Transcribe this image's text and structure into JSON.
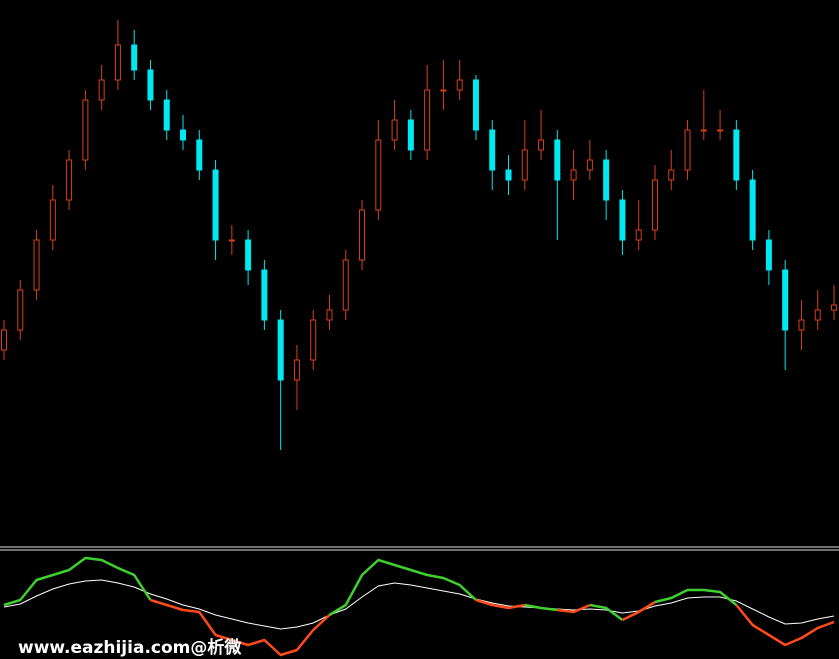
{
  "chart_data": [
    {
      "type": "candlestick",
      "open": [
        40,
        44,
        52,
        62,
        70,
        78,
        90,
        94,
        101,
        96,
        90,
        84,
        82,
        76,
        62,
        62,
        56,
        46,
        34,
        38,
        46,
        48,
        58,
        68,
        82,
        86,
        80,
        92,
        92,
        94,
        84,
        76,
        74,
        80,
        82,
        74,
        76,
        78,
        70,
        62,
        64,
        74,
        76,
        84,
        84,
        84,
        74,
        62,
        56,
        44,
        46,
        48
      ],
      "high": [
        46,
        54,
        64,
        73,
        80,
        92,
        97,
        106,
        104,
        98,
        92,
        87,
        84,
        78,
        65,
        64,
        58,
        48,
        41,
        48,
        51,
        60,
        70,
        86,
        90,
        88,
        97,
        98,
        98,
        95,
        86,
        79,
        86,
        88,
        84,
        80,
        82,
        80,
        72,
        70,
        77,
        80,
        86,
        92,
        88,
        86,
        76,
        64,
        58,
        50,
        52,
        53
      ],
      "low": [
        38,
        42,
        50,
        60,
        68,
        76,
        88,
        92,
        94,
        88,
        82,
        80,
        74,
        58,
        59,
        53,
        44,
        20,
        28,
        36,
        44,
        46,
        56,
        66,
        80,
        78,
        78,
        88,
        90,
        82,
        72,
        71,
        72,
        78,
        62,
        70,
        74,
        66,
        59,
        60,
        62,
        72,
        74,
        82,
        82,
        72,
        60,
        53,
        36,
        40,
        44,
        46
      ],
      "close": [
        44,
        52,
        62,
        70,
        78,
        90,
        94,
        101,
        96,
        90,
        84,
        82,
        76,
        62,
        62,
        56,
        46,
        34,
        38,
        46,
        48,
        58,
        68,
        82,
        86,
        80,
        92,
        92,
        94,
        84,
        76,
        74,
        80,
        82,
        74,
        76,
        78,
        70,
        62,
        64,
        74,
        76,
        84,
        84,
        84,
        74,
        62,
        56,
        44,
        46,
        48,
        49
      ],
      "up_color": "#d8401c",
      "down_color": "#00e8f0",
      "ylim": [
        0,
        110
      ]
    },
    {
      "type": "line",
      "series": [
        {
          "values": [
            5.4,
            5.9,
            7.9,
            8.4,
            8.9,
            10.1,
            9.9,
            9.1,
            8.4,
            5.9,
            5.4,
            4.9,
            4.7,
            2.4,
            1.9,
            1.4,
            1.9,
            0.4,
            0.9,
            2.9,
            4.4,
            5.4,
            8.4,
            9.9,
            9.4,
            8.9,
            8.4,
            8.1,
            7.4,
            5.9,
            5.4,
            5.1,
            5.4,
            5.1,
            4.9,
            4.7,
            5.4,
            5.1,
            3.9,
            4.7,
            5.7,
            6.1,
            6.9,
            6.9,
            6.7,
            5.4,
            3.4,
            2.4,
            1.4,
            2.1,
            3.1,
            3.7
          ],
          "color": "#3fcf2f",
          "below_color": "#ff4a1a"
        },
        {
          "values": [
            5.2,
            5.5,
            6.3,
            7.0,
            7.5,
            7.8,
            7.9,
            7.6,
            7.2,
            6.5,
            6.0,
            5.4,
            5.0,
            4.4,
            4.0,
            3.6,
            3.3,
            3.0,
            3.2,
            3.6,
            4.4,
            5.0,
            6.2,
            7.3,
            7.6,
            7.4,
            7.1,
            6.8,
            6.5,
            6.0,
            5.6,
            5.3,
            5.2,
            5.1,
            5.0,
            4.9,
            5.0,
            4.9,
            4.6,
            4.8,
            5.3,
            5.6,
            6.1,
            6.2,
            6.2,
            5.8,
            5.0,
            4.2,
            3.5,
            3.6,
            4.0,
            4.3
          ],
          "color": "#ffffff"
        }
      ],
      "ylim": [
        0,
        11
      ]
    }
  ],
  "watermark": "www.eazhijia.com@析微"
}
